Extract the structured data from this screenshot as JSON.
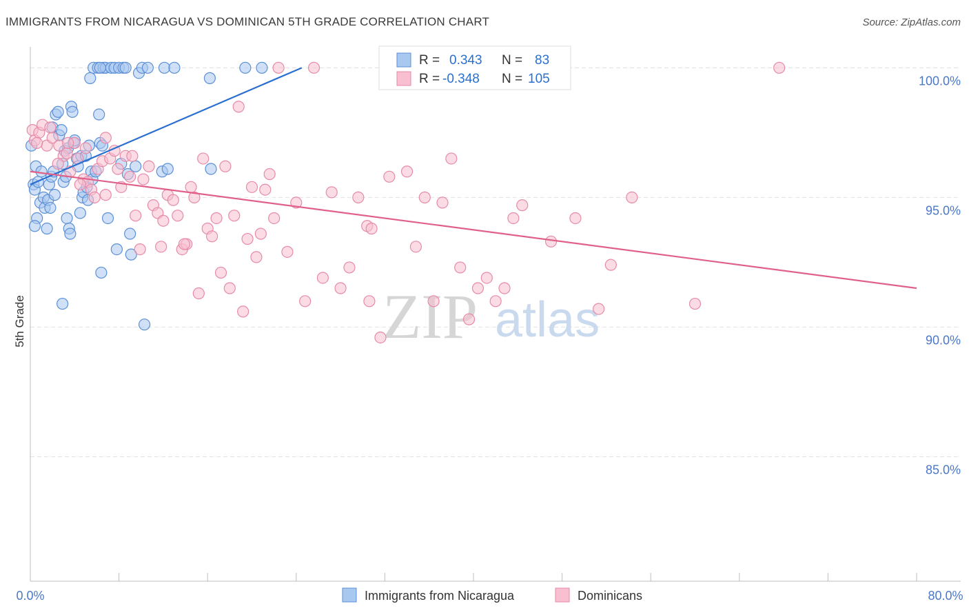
{
  "title": "IMMIGRANTS FROM NICARAGUA VS DOMINICAN 5TH GRADE CORRELATION CHART",
  "source": "Source: ZipAtlas.com",
  "watermark": {
    "zip": "ZIP",
    "atlas": "atlas"
  },
  "colors": {
    "blue_fill": "#a9c8f0",
    "blue_stroke": "#5b8fd6",
    "blue_line": "#2a6fd0",
    "pink_fill": "#f7bfd0",
    "pink_stroke": "#e68aa8",
    "pink_line": "#e0608a",
    "grid": "#e2e2e2",
    "tick_text": "#4a78c8"
  },
  "stats": {
    "r_label": "R =",
    "n_label": "N =",
    "rows": [
      {
        "series": "Immigrants from Nicaragua",
        "r": "0.343",
        "n": "83"
      },
      {
        "series": "Dominicans",
        "r": "-0.348",
        "n": "105"
      }
    ]
  },
  "chart_data": {
    "type": "scatter",
    "title": "IMMIGRANTS FROM NICARAGUA VS DOMINICAN 5TH GRADE CORRELATION CHART",
    "xlabel": "",
    "ylabel": "5th Grade",
    "xlim": [
      0,
      80
    ],
    "ylim": [
      80.2,
      100.7
    ],
    "x_tick_labels": [
      "0.0%",
      "80.0%"
    ],
    "y_ticks": [
      100,
      95,
      90,
      85
    ],
    "y_tick_labels": [
      "100.0%",
      "95.0%",
      "90.0%",
      "85.0%"
    ],
    "grid": true,
    "legend_position": "bottom",
    "series": [
      {
        "name": "Immigrants from Nicaragua",
        "color": "#a9c8f0",
        "trend": {
          "x": [
            0.0,
            24.5
          ],
          "y": [
            95.5,
            100.0
          ]
        },
        "points": [
          [
            0.1,
            97.0
          ],
          [
            0.3,
            95.5
          ],
          [
            0.4,
            95.3
          ],
          [
            0.5,
            96.2
          ],
          [
            0.6,
            94.2
          ],
          [
            0.7,
            95.6
          ],
          [
            0.9,
            94.8
          ],
          [
            1.0,
            96.0
          ],
          [
            1.2,
            95.0
          ],
          [
            1.3,
            94.6
          ],
          [
            1.5,
            93.8
          ],
          [
            1.6,
            94.9
          ],
          [
            1.7,
            95.5
          ],
          [
            1.8,
            94.6
          ],
          [
            1.9,
            95.8
          ],
          [
            2.0,
            97.7
          ],
          [
            2.1,
            96.0
          ],
          [
            2.2,
            95.1
          ],
          [
            2.3,
            98.2
          ],
          [
            2.5,
            98.3
          ],
          [
            2.6,
            97.4
          ],
          [
            2.8,
            97.6
          ],
          [
            2.9,
            96.3
          ],
          [
            3.0,
            95.6
          ],
          [
            3.1,
            96.8
          ],
          [
            3.2,
            95.8
          ],
          [
            3.3,
            94.2
          ],
          [
            3.4,
            96.9
          ],
          [
            3.5,
            93.8
          ],
          [
            3.6,
            93.6
          ],
          [
            3.7,
            98.5
          ],
          [
            3.8,
            98.3
          ],
          [
            3.9,
            97.1
          ],
          [
            4.0,
            97.2
          ],
          [
            4.2,
            96.5
          ],
          [
            4.3,
            96.2
          ],
          [
            4.5,
            94.4
          ],
          [
            4.6,
            96.6
          ],
          [
            4.7,
            95.0
          ],
          [
            4.8,
            95.2
          ],
          [
            5.0,
            96.6
          ],
          [
            5.1,
            95.4
          ],
          [
            5.2,
            94.9
          ],
          [
            5.3,
            97.0
          ],
          [
            5.4,
            99.6
          ],
          [
            5.5,
            96.0
          ],
          [
            5.6,
            95.7
          ],
          [
            5.7,
            100.0
          ],
          [
            5.9,
            96.0
          ],
          [
            6.1,
            100.0
          ],
          [
            6.2,
            98.2
          ],
          [
            6.3,
            97.1
          ],
          [
            6.4,
            92.1
          ],
          [
            6.5,
            97.0
          ],
          [
            6.6,
            100.0
          ],
          [
            6.8,
            100.0
          ],
          [
            7.0,
            94.2
          ],
          [
            7.3,
            100.0
          ],
          [
            7.6,
            100.0
          ],
          [
            7.8,
            93.0
          ],
          [
            8.0,
            100.0
          ],
          [
            8.2,
            96.3
          ],
          [
            8.4,
            100.0
          ],
          [
            8.6,
            100.0
          ],
          [
            8.8,
            95.9
          ],
          [
            9.0,
            93.6
          ],
          [
            9.1,
            92.8
          ],
          [
            9.5,
            96.2
          ],
          [
            9.8,
            99.8
          ],
          [
            10.1,
            100.0
          ],
          [
            10.3,
            90.1
          ],
          [
            10.6,
            100.0
          ],
          [
            11.9,
            96.0
          ],
          [
            12.1,
            100.0
          ],
          [
            12.4,
            96.1
          ],
          [
            13.0,
            100.0
          ],
          [
            16.2,
            99.6
          ],
          [
            16.3,
            96.1
          ],
          [
            19.4,
            100.0
          ],
          [
            20.9,
            100.0
          ],
          [
            2.9,
            90.9
          ],
          [
            0.4,
            93.9
          ],
          [
            6.3,
            100.0
          ]
        ]
      },
      {
        "name": "Dominicans",
        "color": "#f7bfd0",
        "trend": {
          "x": [
            0.0,
            80.0
          ],
          "y": [
            96.0,
            91.5
          ]
        },
        "points": [
          [
            0.2,
            97.6
          ],
          [
            0.4,
            97.2
          ],
          [
            0.8,
            97.5
          ],
          [
            1.1,
            97.8
          ],
          [
            1.5,
            97.0
          ],
          [
            2.0,
            97.3
          ],
          [
            2.6,
            97.0
          ],
          [
            3.0,
            96.6
          ],
          [
            3.3,
            96.7
          ],
          [
            3.6,
            96.0
          ],
          [
            4.0,
            97.1
          ],
          [
            4.3,
            96.5
          ],
          [
            4.8,
            95.7
          ],
          [
            5.0,
            96.9
          ],
          [
            5.2,
            95.6
          ],
          [
            5.5,
            95.3
          ],
          [
            5.8,
            95.0
          ],
          [
            6.1,
            96.1
          ],
          [
            6.5,
            96.4
          ],
          [
            6.8,
            97.3
          ],
          [
            7.2,
            96.5
          ],
          [
            7.6,
            96.8
          ],
          [
            7.9,
            96.1
          ],
          [
            8.2,
            95.4
          ],
          [
            8.6,
            96.6
          ],
          [
            9.0,
            95.8
          ],
          [
            9.5,
            94.3
          ],
          [
            9.9,
            93.0
          ],
          [
            10.2,
            95.7
          ],
          [
            10.7,
            96.2
          ],
          [
            11.1,
            94.7
          ],
          [
            11.5,
            94.4
          ],
          [
            11.8,
            93.1
          ],
          [
            12.0,
            94.1
          ],
          [
            12.4,
            95.1
          ],
          [
            12.9,
            94.9
          ],
          [
            13.3,
            94.3
          ],
          [
            13.7,
            93.0
          ],
          [
            14.1,
            93.2
          ],
          [
            14.5,
            95.4
          ],
          [
            14.8,
            95.0
          ],
          [
            15.2,
            91.3
          ],
          [
            15.6,
            96.5
          ],
          [
            16.0,
            93.8
          ],
          [
            16.4,
            93.5
          ],
          [
            16.8,
            94.2
          ],
          [
            17.2,
            92.1
          ],
          [
            17.6,
            96.2
          ],
          [
            18.0,
            91.5
          ],
          [
            18.4,
            94.3
          ],
          [
            18.8,
            98.5
          ],
          [
            19.2,
            90.6
          ],
          [
            19.6,
            93.4
          ],
          [
            20.0,
            95.4
          ],
          [
            20.4,
            92.7
          ],
          [
            20.8,
            93.6
          ],
          [
            21.2,
            95.3
          ],
          [
            21.6,
            95.9
          ],
          [
            22.0,
            94.2
          ],
          [
            22.4,
            100.0
          ],
          [
            23.2,
            92.9
          ],
          [
            24.0,
            94.8
          ],
          [
            24.8,
            91.0
          ],
          [
            25.6,
            100.0
          ],
          [
            26.4,
            91.9
          ],
          [
            27.2,
            95.2
          ],
          [
            28.0,
            91.5
          ],
          [
            28.8,
            92.3
          ],
          [
            29.6,
            95.0
          ],
          [
            30.4,
            93.9
          ],
          [
            30.6,
            91.0
          ],
          [
            30.8,
            93.8
          ],
          [
            31.6,
            89.6
          ],
          [
            32.4,
            95.8
          ],
          [
            33.2,
            100.0
          ],
          [
            34.0,
            96.0
          ],
          [
            34.8,
            93.1
          ],
          [
            35.6,
            95.0
          ],
          [
            36.4,
            91.0
          ],
          [
            37.2,
            94.8
          ],
          [
            38.0,
            96.5
          ],
          [
            38.8,
            92.3
          ],
          [
            39.6,
            90.3
          ],
          [
            40.4,
            91.5
          ],
          [
            41.2,
            91.9
          ],
          [
            42.0,
            91.0
          ],
          [
            42.8,
            91.5
          ],
          [
            43.6,
            94.2
          ],
          [
            44.4,
            94.7
          ],
          [
            45.2,
            100.0
          ],
          [
            47.0,
            93.3
          ],
          [
            49.2,
            94.2
          ],
          [
            51.3,
            90.7
          ],
          [
            52.4,
            92.4
          ],
          [
            54.3,
            95.0
          ],
          [
            60.0,
            90.9
          ],
          [
            67.6,
            100.0
          ],
          [
            0.6,
            97.1
          ],
          [
            1.8,
            97.7
          ],
          [
            3.4,
            97.1
          ],
          [
            2.5,
            96.3
          ],
          [
            4.5,
            95.5
          ],
          [
            6.8,
            95.1
          ],
          [
            9.2,
            96.6
          ],
          [
            13.9,
            93.2
          ]
        ]
      }
    ]
  },
  "legend": {
    "items": [
      {
        "label": "Immigrants from Nicaragua",
        "swatch": "blue"
      },
      {
        "label": "Dominicans",
        "swatch": "pink"
      }
    ]
  }
}
